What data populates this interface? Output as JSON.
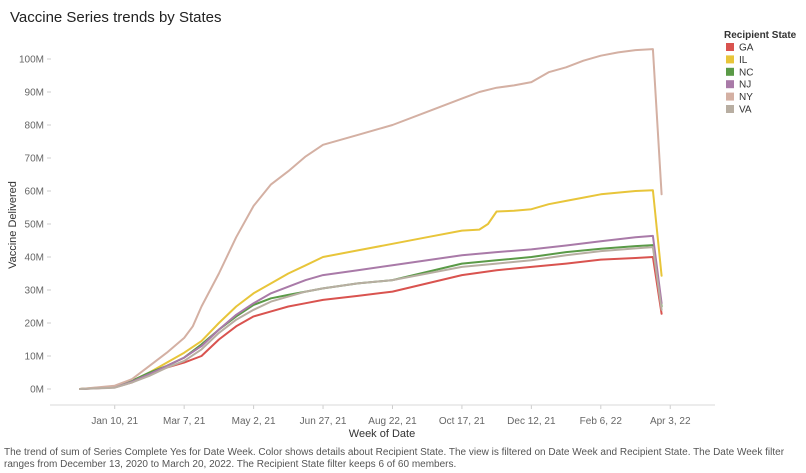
{
  "page": {
    "title": "Vaccine Series trends by States",
    "caption": "The trend of sum of Series Complete Yes for Date Week.  Color shows details about Recipient State. The view is filtered on Date Week and Recipient State. The Date Week filter ranges from December 13, 2020 to March 20, 2022. The Recipient State filter keeps 6 of 60 members."
  },
  "chart_data": {
    "type": "line",
    "title": "Vaccine Series trends by States",
    "xlabel": "Week of Date",
    "ylabel": "Vaccine Delivered",
    "x_start": "Dec 13, 20",
    "x_end": "Mar 27, 22",
    "x_ticks": [
      {
        "label": "Jan 10, 21",
        "week": 4
      },
      {
        "label": "Mar 7, 21",
        "week": 12
      },
      {
        "label": "May 2, 21",
        "week": 20
      },
      {
        "label": "Jun 27, 21",
        "week": 28
      },
      {
        "label": "Aug 22, 21",
        "week": 36
      },
      {
        "label": "Oct 17, 21",
        "week": 44
      },
      {
        "label": "Dec 12, 21",
        "week": 52
      },
      {
        "label": "Feb 6, 22",
        "week": 60
      },
      {
        "label": "Apr 3, 22",
        "week": 68
      }
    ],
    "y_ticks": [
      {
        "label": "0M",
        "value": 0
      },
      {
        "label": "10M",
        "value": 10
      },
      {
        "label": "20M",
        "value": 20
      },
      {
        "label": "30M",
        "value": 30
      },
      {
        "label": "40M",
        "value": 40
      },
      {
        "label": "50M",
        "value": 50
      },
      {
        "label": "60M",
        "value": 60
      },
      {
        "label": "70M",
        "value": 70
      },
      {
        "label": "80M",
        "value": 80
      },
      {
        "label": "90M",
        "value": 90
      },
      {
        "label": "100M",
        "value": 100
      }
    ],
    "ylim": [
      0,
      105
    ],
    "y_unit": "M",
    "grid": false,
    "legend": {
      "title": "Recipient State",
      "position": "right"
    },
    "series": [
      {
        "name": "GA",
        "color": "#d9534f",
        "points": [
          [
            0,
            0
          ],
          [
            4,
            0.5
          ],
          [
            6,
            2
          ],
          [
            8,
            4.5
          ],
          [
            10,
            6.5
          ],
          [
            12,
            8
          ],
          [
            14,
            10
          ],
          [
            16,
            15
          ],
          [
            18,
            19
          ],
          [
            20,
            22
          ],
          [
            22,
            23.5
          ],
          [
            24,
            25
          ],
          [
            26,
            26
          ],
          [
            28,
            27
          ],
          [
            32,
            28.2
          ],
          [
            36,
            29.5
          ],
          [
            40,
            32
          ],
          [
            44,
            34.5
          ],
          [
            48,
            36
          ],
          [
            52,
            37
          ],
          [
            56,
            38
          ],
          [
            60,
            39.2
          ],
          [
            64,
            39.7
          ],
          [
            66,
            40
          ],
          [
            67,
            22.8
          ]
        ]
      },
      {
        "name": "IL",
        "color": "#e8c53a",
        "points": [
          [
            0,
            0
          ],
          [
            4,
            0.8
          ],
          [
            6,
            2.5
          ],
          [
            8,
            5
          ],
          [
            10,
            8
          ],
          [
            12,
            11
          ],
          [
            14,
            14.5
          ],
          [
            16,
            20
          ],
          [
            18,
            25
          ],
          [
            20,
            29
          ],
          [
            22,
            32
          ],
          [
            24,
            35
          ],
          [
            26,
            37.5
          ],
          [
            28,
            40
          ],
          [
            32,
            42
          ],
          [
            36,
            44
          ],
          [
            40,
            46
          ],
          [
            44,
            48
          ],
          [
            46,
            48.3
          ],
          [
            47,
            50
          ],
          [
            48,
            53.8
          ],
          [
            50,
            54
          ],
          [
            52,
            54.5
          ],
          [
            54,
            56
          ],
          [
            56,
            57
          ],
          [
            58,
            58
          ],
          [
            60,
            59
          ],
          [
            64,
            60
          ],
          [
            66,
            60.2
          ],
          [
            67,
            34.3
          ]
        ]
      },
      {
        "name": "NC",
        "color": "#5a9a47",
        "points": [
          [
            0,
            0
          ],
          [
            4,
            0.6
          ],
          [
            6,
            2.5
          ],
          [
            8,
            5
          ],
          [
            10,
            7
          ],
          [
            12,
            9.5
          ],
          [
            14,
            13.5
          ],
          [
            16,
            18
          ],
          [
            18,
            22
          ],
          [
            20,
            25.5
          ],
          [
            22,
            27.5
          ],
          [
            24,
            28.5
          ],
          [
            26,
            29.5
          ],
          [
            28,
            30.5
          ],
          [
            32,
            32
          ],
          [
            36,
            33
          ],
          [
            40,
            35.5
          ],
          [
            44,
            38
          ],
          [
            48,
            39
          ],
          [
            52,
            40
          ],
          [
            56,
            41.5
          ],
          [
            60,
            42.5
          ],
          [
            64,
            43.3
          ],
          [
            66,
            43.6
          ],
          [
            67,
            25
          ]
        ]
      },
      {
        "name": "NJ",
        "color": "#a97aa8",
        "points": [
          [
            0,
            0
          ],
          [
            4,
            0.5
          ],
          [
            6,
            2.2
          ],
          [
            8,
            4.5
          ],
          [
            10,
            7
          ],
          [
            12,
            9.5
          ],
          [
            14,
            13
          ],
          [
            16,
            18
          ],
          [
            18,
            22.5
          ],
          [
            20,
            26
          ],
          [
            22,
            29
          ],
          [
            24,
            31
          ],
          [
            26,
            33
          ],
          [
            28,
            34.5
          ],
          [
            32,
            36
          ],
          [
            36,
            37.5
          ],
          [
            40,
            39
          ],
          [
            44,
            40.5
          ],
          [
            48,
            41.5
          ],
          [
            52,
            42.3
          ],
          [
            56,
            43.5
          ],
          [
            60,
            44.8
          ],
          [
            64,
            46
          ],
          [
            66,
            46.4
          ],
          [
            67,
            26
          ]
        ]
      },
      {
        "name": "NY",
        "color": "#d4b0a3",
        "points": [
          [
            0,
            0
          ],
          [
            4,
            1
          ],
          [
            6,
            3
          ],
          [
            8,
            7
          ],
          [
            10,
            11
          ],
          [
            12,
            15.5
          ],
          [
            13,
            19
          ],
          [
            14,
            25
          ],
          [
            16,
            35
          ],
          [
            18,
            46
          ],
          [
            20,
            55.5
          ],
          [
            22,
            62
          ],
          [
            24,
            66
          ],
          [
            26,
            70.5
          ],
          [
            28,
            74
          ],
          [
            32,
            77
          ],
          [
            36,
            80
          ],
          [
            40,
            84
          ],
          [
            44,
            88
          ],
          [
            45,
            89
          ],
          [
            46,
            90
          ],
          [
            48,
            91.3
          ],
          [
            50,
            92
          ],
          [
            52,
            93
          ],
          [
            54,
            96
          ],
          [
            56,
            97.5
          ],
          [
            58,
            99.5
          ],
          [
            60,
            101
          ],
          [
            62,
            102
          ],
          [
            64,
            102.7
          ],
          [
            66,
            103
          ],
          [
            67,
            59
          ]
        ]
      },
      {
        "name": "VA",
        "color": "#b8aea2",
        "points": [
          [
            0,
            0
          ],
          [
            4,
            0.4
          ],
          [
            6,
            2
          ],
          [
            8,
            4
          ],
          [
            10,
            6.5
          ],
          [
            12,
            8.5
          ],
          [
            14,
            12
          ],
          [
            16,
            17
          ],
          [
            18,
            21
          ],
          [
            20,
            24
          ],
          [
            22,
            26.5
          ],
          [
            24,
            28
          ],
          [
            26,
            29.5
          ],
          [
            28,
            30.5
          ],
          [
            32,
            32
          ],
          [
            36,
            33
          ],
          [
            40,
            35
          ],
          [
            44,
            37
          ],
          [
            48,
            38
          ],
          [
            52,
            39
          ],
          [
            56,
            40.5
          ],
          [
            60,
            41.8
          ],
          [
            64,
            42.6
          ],
          [
            66,
            43
          ],
          [
            67,
            24
          ]
        ]
      }
    ]
  }
}
